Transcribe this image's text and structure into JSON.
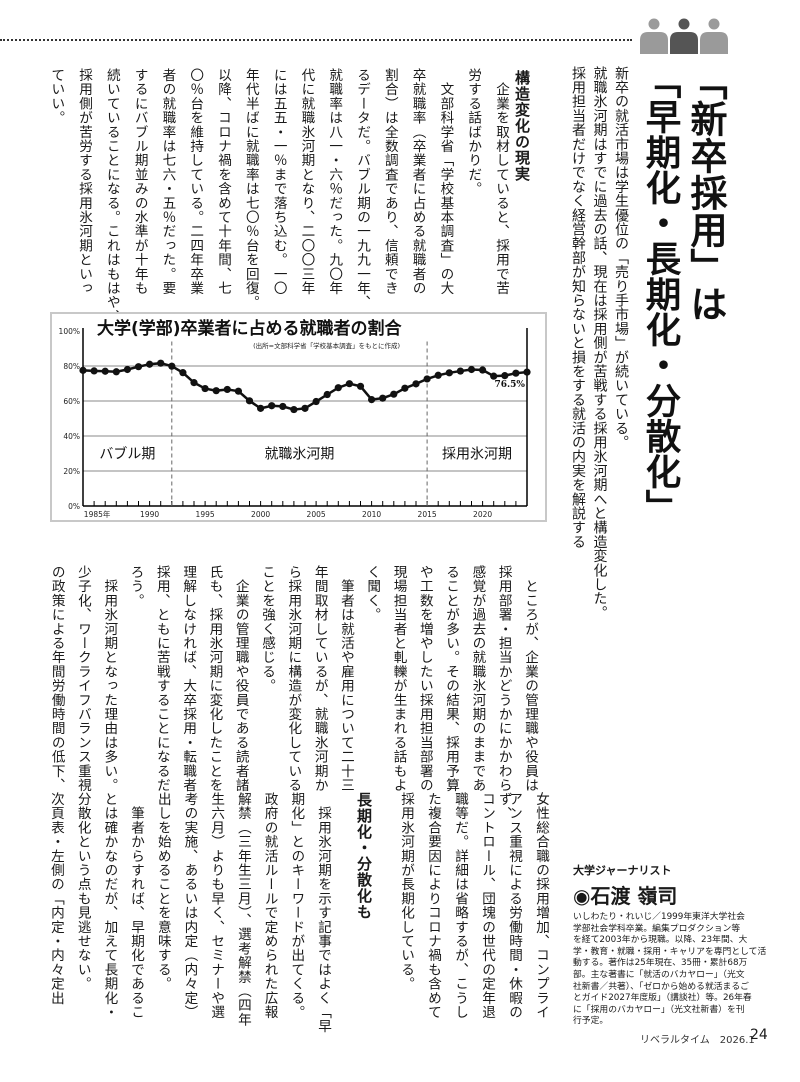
{
  "header": {
    "icon": "three-people-icon",
    "icon_colors": [
      "#9a9a9a",
      "#555555",
      "#9a9a9a"
    ],
    "title_lines": [
      "「新卒採用」は",
      "「早期化・長期化・分散化」"
    ],
    "lead_lines": [
      "新卒の就活市場は学生優位の「売り手市場」が続いている。",
      "就職氷河期はすでに過去の話、現在は採用側が苦戦する採用氷河期へと構造変化した。",
      "採用担当者だけでなく経営幹部が知らないと損をする就活の内実を解説する"
    ]
  },
  "article": {
    "section1_heading": "構造変化の現実",
    "block1_lines": [
      "　企業を取材していると、採用で苦",
      "労する話ばかりだ。",
      "　文部科学省「学校基本調査」の大",
      "卒就職率（卒業者に占める就職者の",
      "割合）は全数調査であり、信頼でき",
      "るデータだ。バブル期の一九九一年、",
      "就職率は八一・六％だった。九〇年",
      "代に就職氷河期となり、二〇〇三年",
      "には五五・一％まで落ち込む。一〇",
      "年代半ばに就職率は七〇％台を回復。",
      "以降、コロナ禍を含めて十年間、七",
      "〇％台を維持している。二四年卒業",
      "者の就職率は七六・五％だった。要",
      "するにバブル期並みの水準が十年も",
      "続いていることになる。これはもはや、",
      "採用側が苦労する採用氷河期といっ",
      "ていい。"
    ],
    "block2_lines": [
      "　ところが、企業の管理職や役員は",
      "採用部署・担当かどうかにかかわらず、",
      "感覚が過去の就職氷河期のままであ",
      "ることが多い。その結果、採用予算",
      "や工数を増やしたい採用担当部署の",
      "現場担当者と軋轢が生まれる話もよ",
      "く聞く。",
      "　筆者は就活や雇用について二十三",
      "年間取材しているが、就職氷河期か",
      "ら採用氷河期に構造が変化している",
      "ことを強く感じる。",
      "　企業の管理職や役員である読者諸",
      "氏も、採用氷河期に変化したことを",
      "理解しなければ、大卒採用・転職者",
      "採用、ともに苦戦することになるだ",
      "ろう。",
      "　採用氷河期となった理由は多い。",
      "少子化、ワークライフバランス重視",
      "の政策による年間労働時間の低下、"
    ],
    "block3a_lines": [
      "女性総合職の採用増加、コンプライ",
      "アンス重視による労働時間・休暇の",
      "コントロール、団塊の世代の定年退",
      "職等だ。詳細は省略するが、こうし",
      "た複合要因によりコロナ禍も含めて",
      "採用氷河期が長期化している。"
    ],
    "section2_heading": "長期化・分散化も",
    "block3b_lines": [
      "　採用氷河期を示す記事ではよく「早",
      "期化」とのキーワードが出てくる。",
      "政府の就活ルールで定められた広報",
      "解禁（三年生三月）、選考解禁（四年",
      "生六月）よりも早く、セミナーや選",
      "考の実施、あるいは内定（内々定）",
      "出しを始めることを意味する。",
      "　筆者からすれば、早期化であるこ",
      "とは確かなのだが、加えて長期化・",
      "分散化という点も見逃せない。",
      "次頁表・左側の「内定・内々定出"
    ]
  },
  "profile": {
    "role": "大学ジャーナリスト",
    "name": "◉石渡 嶺司",
    "bio_lines": [
      "いしわたり・れいじ／1999年東洋大学社会",
      "学部社会学科卒業。編集プロダクション等",
      "を経て2003年から現職。以降、23年間、大",
      "学・教育・就職・採用・キャリアを専門として活",
      "動する。著作は25年現在、35冊・累計68万",
      "部。主な著書に「就活のバカヤロー」（光文",
      "社新書／共著）、「ゼロから始める就活まるご",
      "とガイド2027年度版」（講談社）等。26年春",
      "に「採用のバカヤロー」（光文社新書）を刊",
      "行予定。"
    ]
  },
  "footer": {
    "magazine": "リベラルタイム　2026.1",
    "page_number": "24"
  },
  "chart_data": {
    "type": "line",
    "title": "大学(学部)卒業者に占める就職者の割合",
    "source": "(出所=文部科学省「学校基本調査」をもとに作成)",
    "x": [
      1984,
      1985,
      1986,
      1987,
      1988,
      1989,
      1990,
      1991,
      1992,
      1993,
      1994,
      1995,
      1996,
      1997,
      1998,
      1999,
      2000,
      2001,
      2002,
      2003,
      2004,
      2005,
      2006,
      2007,
      2008,
      2009,
      2010,
      2011,
      2012,
      2013,
      2014,
      2015,
      2016,
      2017,
      2018,
      2019,
      2020,
      2021,
      2022,
      2023,
      2024
    ],
    "values": [
      77.5,
      77.2,
      77.0,
      76.7,
      78.0,
      79.6,
      81.0,
      81.6,
      79.9,
      76.2,
      70.5,
      67.1,
      65.9,
      66.6,
      65.6,
      60.1,
      55.8,
      57.3,
      56.9,
      55.1,
      55.8,
      59.7,
      63.7,
      67.6,
      69.9,
      68.4,
      60.8,
      61.6,
      63.9,
      67.3,
      69.8,
      72.6,
      74.7,
      76.1,
      77.1,
      78.0,
      77.7,
      74.2,
      74.5,
      75.9,
      76.5
    ],
    "x_tick_labels": [
      {
        "year": 1985,
        "label": "1985年"
      },
      {
        "year": 1990,
        "label": "1990"
      },
      {
        "year": 1995,
        "label": "1995"
      },
      {
        "year": 2000,
        "label": "2000"
      },
      {
        "year": 2005,
        "label": "2005"
      },
      {
        "year": 2010,
        "label": "2010"
      },
      {
        "year": 2015,
        "label": "2015"
      },
      {
        "year": 2020,
        "label": "2020"
      }
    ],
    "y_ticks": [
      0,
      20,
      40,
      60,
      80,
      100
    ],
    "y_tick_labels": [
      "0%",
      "20%",
      "40%",
      "60%",
      "80%",
      "100%"
    ],
    "xlim": [
      1984,
      2024
    ],
    "ylim": [
      0,
      100
    ],
    "grid": true,
    "era_boundaries": [
      1992,
      2015
    ],
    "eras": [
      {
        "label": "バブル期",
        "from": 1984,
        "to": 1992
      },
      {
        "label": "就職氷河期",
        "from": 1992,
        "to": 2015
      },
      {
        "label": "採用氷河期",
        "from": 2015,
        "to": 2024
      }
    ],
    "end_label": "76.5%",
    "line_color": "#111111",
    "grid_color": "#8a8a8a"
  }
}
